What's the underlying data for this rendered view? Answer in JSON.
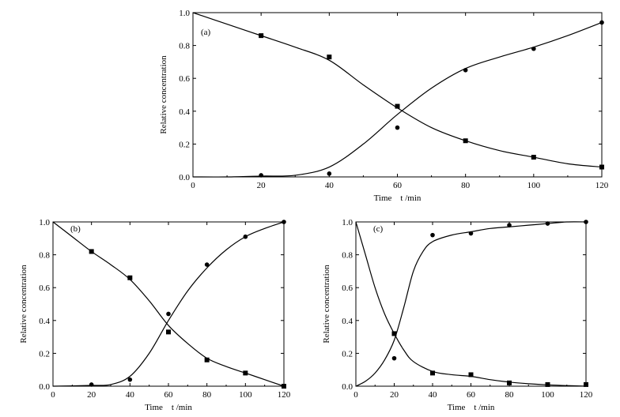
{
  "chart_data": [
    {
      "type": "scatter",
      "panel_label": "(a)",
      "xlabel": "Time    t /min",
      "ylabel": "Relative concentration",
      "xlim": [
        0,
        120
      ],
      "ylim": [
        0,
        1.0
      ],
      "xticks": [
        "0",
        "20",
        "40",
        "60",
        "80",
        "100",
        "120"
      ],
      "yticks": [
        "0.0",
        "0.2",
        "0.4",
        "0.6",
        "0.8",
        "1.0"
      ],
      "series": [
        {
          "marker": "square",
          "x": [
            20,
            40,
            60,
            80,
            100,
            120
          ],
          "y": [
            0.86,
            0.73,
            0.43,
            0.22,
            0.12,
            0.06
          ],
          "fit_x": [
            0,
            10,
            20,
            30,
            40,
            50,
            60,
            70,
            80,
            90,
            100,
            110,
            120
          ],
          "fit_y": [
            1.0,
            0.93,
            0.86,
            0.79,
            0.71,
            0.56,
            0.42,
            0.3,
            0.22,
            0.16,
            0.12,
            0.08,
            0.06
          ]
        },
        {
          "marker": "circle",
          "x": [
            20,
            40,
            60,
            80,
            100,
            120
          ],
          "y": [
            0.01,
            0.02,
            0.3,
            0.65,
            0.78,
            0.94
          ],
          "fit_x": [
            0,
            10,
            20,
            30,
            40,
            50,
            60,
            70,
            80,
            90,
            100,
            110,
            120
          ],
          "fit_y": [
            0.0,
            0.0,
            0.005,
            0.01,
            0.06,
            0.2,
            0.38,
            0.54,
            0.66,
            0.73,
            0.79,
            0.86,
            0.94
          ]
        }
      ]
    },
    {
      "type": "scatter",
      "panel_label": "(b)",
      "xlabel": "Time    t /min",
      "ylabel": "Relative concentration",
      "xlim": [
        0,
        120
      ],
      "ylim": [
        0,
        1.0
      ],
      "xticks": [
        "0",
        "20",
        "40",
        "60",
        "80",
        "100",
        "120"
      ],
      "yticks": [
        "0.0",
        "0.2",
        "0.4",
        "0.6",
        "0.8",
        "1.0"
      ],
      "series": [
        {
          "marker": "square",
          "x": [
            20,
            40,
            60,
            80,
            100,
            120
          ],
          "y": [
            0.82,
            0.66,
            0.33,
            0.16,
            0.08,
            0.0
          ],
          "fit_x": [
            0,
            10,
            20,
            30,
            40,
            50,
            60,
            70,
            80,
            90,
            100,
            110,
            120
          ],
          "fit_y": [
            1.0,
            0.91,
            0.82,
            0.74,
            0.65,
            0.52,
            0.37,
            0.26,
            0.17,
            0.12,
            0.08,
            0.04,
            0.0
          ]
        },
        {
          "marker": "circle",
          "x": [
            20,
            40,
            60,
            80,
            100,
            120
          ],
          "y": [
            0.01,
            0.04,
            0.44,
            0.74,
            0.91,
            1.0
          ],
          "fit_x": [
            0,
            10,
            20,
            30,
            40,
            50,
            60,
            70,
            80,
            90,
            100,
            110,
            120
          ],
          "fit_y": [
            0.0,
            0.002,
            0.005,
            0.01,
            0.06,
            0.2,
            0.4,
            0.58,
            0.72,
            0.83,
            0.91,
            0.96,
            1.0
          ]
        }
      ]
    },
    {
      "type": "scatter",
      "panel_label": "(c)",
      "xlabel": "Time    t /min",
      "ylabel": "Relative concentration",
      "xlim": [
        0,
        120
      ],
      "ylim": [
        0,
        1.0
      ],
      "xticks": [
        "0",
        "20",
        "40",
        "60",
        "80",
        "100",
        "120"
      ],
      "yticks": [
        "0.0",
        "0.2",
        "0.4",
        "0.6",
        "0.8",
        "1.0"
      ],
      "series": [
        {
          "marker": "square",
          "x": [
            20,
            40,
            60,
            80,
            100,
            120
          ],
          "y": [
            0.32,
            0.08,
            0.07,
            0.02,
            0.01,
            0.01
          ],
          "fit_x": [
            0,
            5,
            10,
            15,
            20,
            25,
            30,
            40,
            50,
            60,
            70,
            80,
            90,
            100,
            110,
            120
          ],
          "fit_y": [
            1.0,
            0.8,
            0.6,
            0.44,
            0.32,
            0.22,
            0.15,
            0.09,
            0.07,
            0.06,
            0.04,
            0.025,
            0.015,
            0.008,
            0.004,
            0.0
          ]
        },
        {
          "marker": "circle",
          "x": [
            20,
            40,
            60,
            80,
            100,
            120
          ],
          "y": [
            0.17,
            0.92,
            0.93,
            0.98,
            0.99,
            1.0
          ],
          "fit_x": [
            0,
            5,
            10,
            15,
            20,
            25,
            30,
            35,
            40,
            50,
            60,
            70,
            80,
            90,
            100,
            110,
            120
          ],
          "fit_y": [
            0.0,
            0.03,
            0.08,
            0.16,
            0.28,
            0.48,
            0.7,
            0.82,
            0.88,
            0.92,
            0.94,
            0.96,
            0.97,
            0.98,
            0.99,
            1.0,
            1.0
          ]
        }
      ]
    }
  ]
}
